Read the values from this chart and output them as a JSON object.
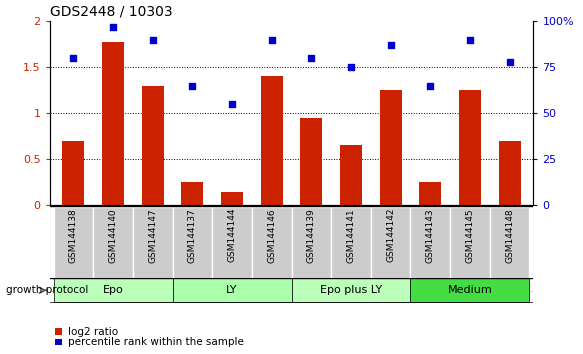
{
  "title": "GDS2448 / 10303",
  "samples": [
    "GSM144138",
    "GSM144140",
    "GSM144147",
    "GSM144137",
    "GSM144144",
    "GSM144146",
    "GSM144139",
    "GSM144141",
    "GSM144142",
    "GSM144143",
    "GSM144145",
    "GSM144148"
  ],
  "log2_ratio": [
    0.7,
    1.77,
    1.3,
    0.25,
    0.15,
    1.4,
    0.95,
    0.65,
    1.25,
    0.25,
    1.25,
    0.7
  ],
  "percentile_rank": [
    80,
    97,
    90,
    65,
    55,
    90,
    80,
    75,
    87,
    65,
    90,
    78
  ],
  "bar_color": "#cc2200",
  "dot_color": "#0000cc",
  "ylim_left": [
    0,
    2
  ],
  "ylim_right": [
    0,
    100
  ],
  "yticks_left": [
    0,
    0.5,
    1.0,
    1.5,
    2.0
  ],
  "yticks_right": [
    0,
    25,
    50,
    75,
    100
  ],
  "ytick_labels_left": [
    "0",
    "0.5",
    "1",
    "1.5",
    "2"
  ],
  "ytick_labels_right": [
    "0",
    "25",
    "50",
    "75",
    "100%"
  ],
  "groups": [
    {
      "label": "Epo",
      "start": 0,
      "end": 3,
      "color": "#bbffbb"
    },
    {
      "label": "LY",
      "start": 3,
      "end": 6,
      "color": "#aaffaa"
    },
    {
      "label": "Epo plus LY",
      "start": 6,
      "end": 9,
      "color": "#bbffbb"
    },
    {
      "label": "Medium",
      "start": 9,
      "end": 12,
      "color": "#44dd44"
    }
  ],
  "group_protocol_label": "growth protocol",
  "legend_bar_label": "log2 ratio",
  "legend_dot_label": "percentile rank within the sample",
  "background_color": "#ffffff",
  "plot_bg_color": "#ffffff",
  "title_fontsize": 10,
  "axis_label_color_left": "#cc2200",
  "axis_label_color_right": "#0000cc",
  "sample_bg_color": "#cccccc",
  "sample_border_color": "#999999"
}
